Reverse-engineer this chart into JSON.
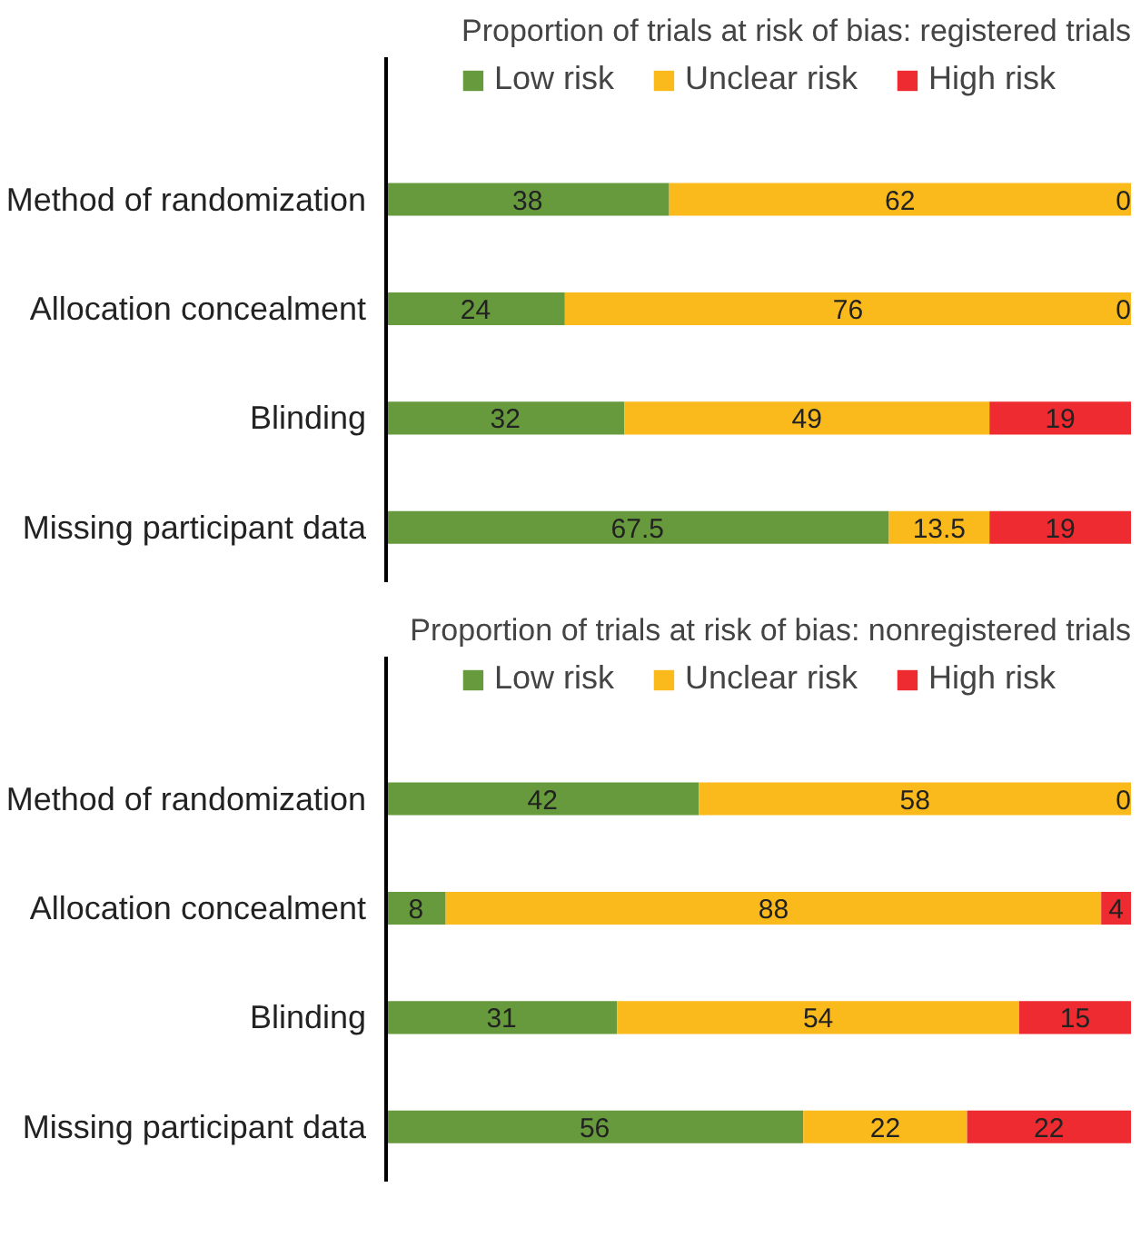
{
  "chart_data": [
    {
      "type": "bar",
      "orientation": "horizontal",
      "stacked": true,
      "title": "Proportion of trials at risk of bias: registered trials",
      "categories": [
        "Method of randomization",
        "Allocation concealment",
        "Blinding",
        "Missing participant data"
      ],
      "legend": "top",
      "data_labels": true,
      "grid": false,
      "series": [
        {
          "name": "Low risk",
          "color": "#669a3c",
          "values": [
            38,
            24,
            32,
            67.5
          ]
        },
        {
          "name": "Unclear risk",
          "color": "#fbba1b",
          "values": [
            62,
            76,
            49,
            13.5
          ]
        },
        {
          "name": "High risk",
          "color": "#ed2b30",
          "values": [
            0,
            0,
            19,
            19
          ]
        }
      ]
    },
    {
      "type": "bar",
      "orientation": "horizontal",
      "stacked": true,
      "title": "Proportion of trials at risk of bias: nonregistered trials",
      "categories": [
        "Method of randomization",
        "Allocation concealment",
        "Blinding",
        "Missing participant data"
      ],
      "legend": "top",
      "data_labels": true,
      "grid": false,
      "series": [
        {
          "name": "Low risk",
          "color": "#669a3c",
          "values": [
            42,
            8,
            31,
            56
          ]
        },
        {
          "name": "Unclear risk",
          "color": "#fbba1b",
          "values": [
            58,
            88,
            54,
            22
          ]
        },
        {
          "name": "High risk",
          "color": "#ed2b30",
          "values": [
            0,
            4,
            15,
            22
          ]
        }
      ]
    }
  ]
}
